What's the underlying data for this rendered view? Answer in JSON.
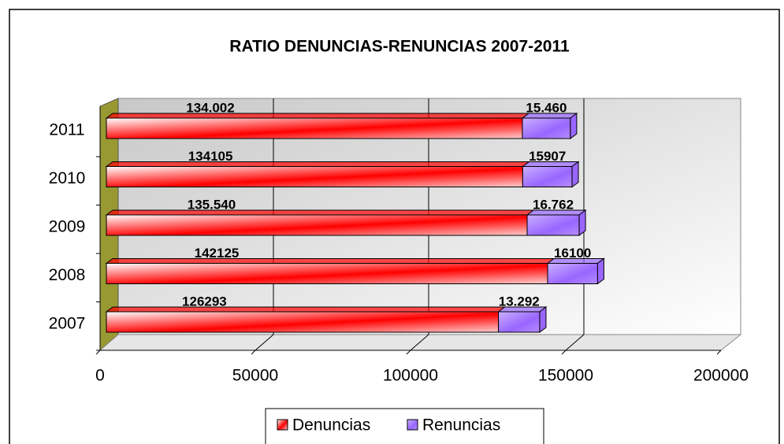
{
  "chart_data": {
    "type": "stacked_bar_horizontal_3d",
    "title": "RATIO DENUNCIAS-RENUNCIAS 2007-2011",
    "categories": [
      "2007",
      "2008",
      "2009",
      "2010",
      "2011"
    ],
    "series": [
      {
        "name": "Denuncias",
        "color": "#ff0000",
        "values": [
          126293,
          142125,
          135540,
          134105,
          134002
        ],
        "value_labels": [
          "126293",
          "142125",
          "135.540",
          "134105",
          "134.002"
        ]
      },
      {
        "name": "Renuncias",
        "color": "#9966ff",
        "values": [
          13292,
          16100,
          16762,
          15907,
          15460
        ],
        "value_labels": [
          "13.292",
          "16100",
          "16.762",
          "15907",
          "15.460"
        ]
      }
    ],
    "xlim": [
      0,
      200000
    ],
    "xticks": [
      0,
      50000,
      100000,
      150000,
      200000
    ],
    "grid": true,
    "legend": "bottom"
  }
}
